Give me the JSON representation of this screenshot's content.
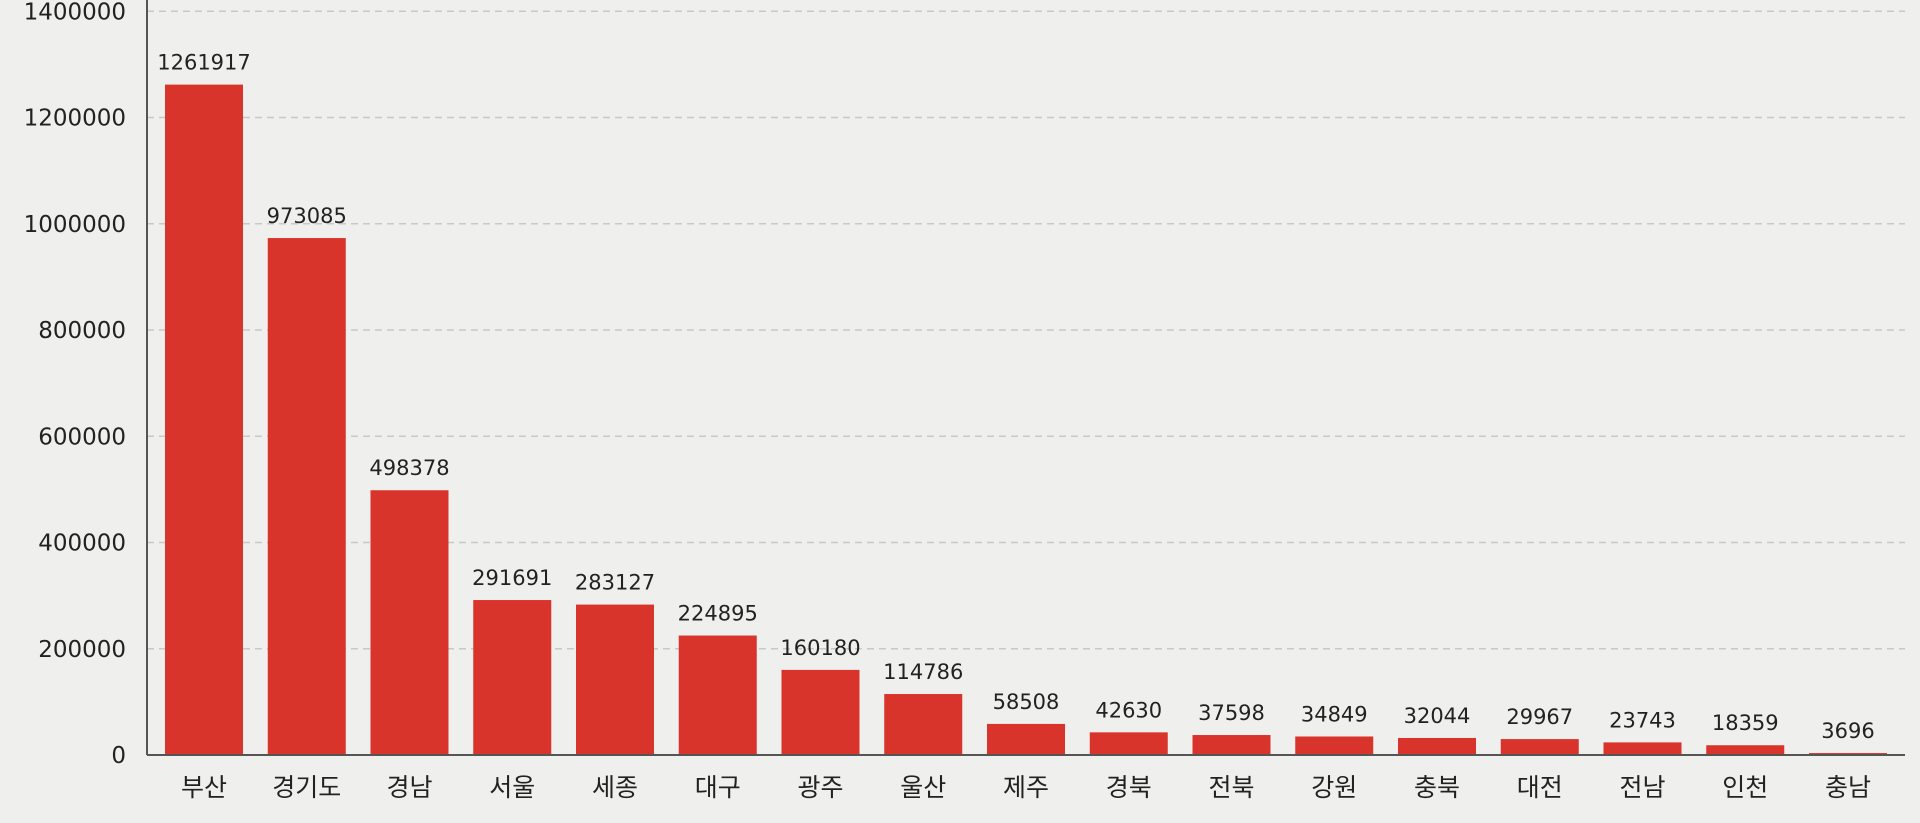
{
  "chart_data": {
    "type": "bar",
    "title": "",
    "xlabel": "",
    "ylabel": "",
    "categories": [
      "부산",
      "경기도",
      "경남",
      "서울",
      "세종",
      "대구",
      "광주",
      "울산",
      "제주",
      "경북",
      "전북",
      "강원",
      "충북",
      "대전",
      "전남",
      "인천",
      "충남"
    ],
    "values": [
      1261917,
      973085,
      498378,
      291691,
      283127,
      224895,
      160180,
      114786,
      58508,
      42630,
      37598,
      34849,
      32044,
      29967,
      23743,
      18359,
      3696
    ],
    "ylim": [
      0,
      1400000
    ],
    "yticks": [
      0,
      200000,
      400000,
      600000,
      800000,
      1000000,
      1200000,
      1400000
    ],
    "grid": true,
    "bar_color": "#d9342b",
    "grid_color": "#c8c8c6",
    "axis_color": "#555555",
    "text_color": "#222222"
  }
}
